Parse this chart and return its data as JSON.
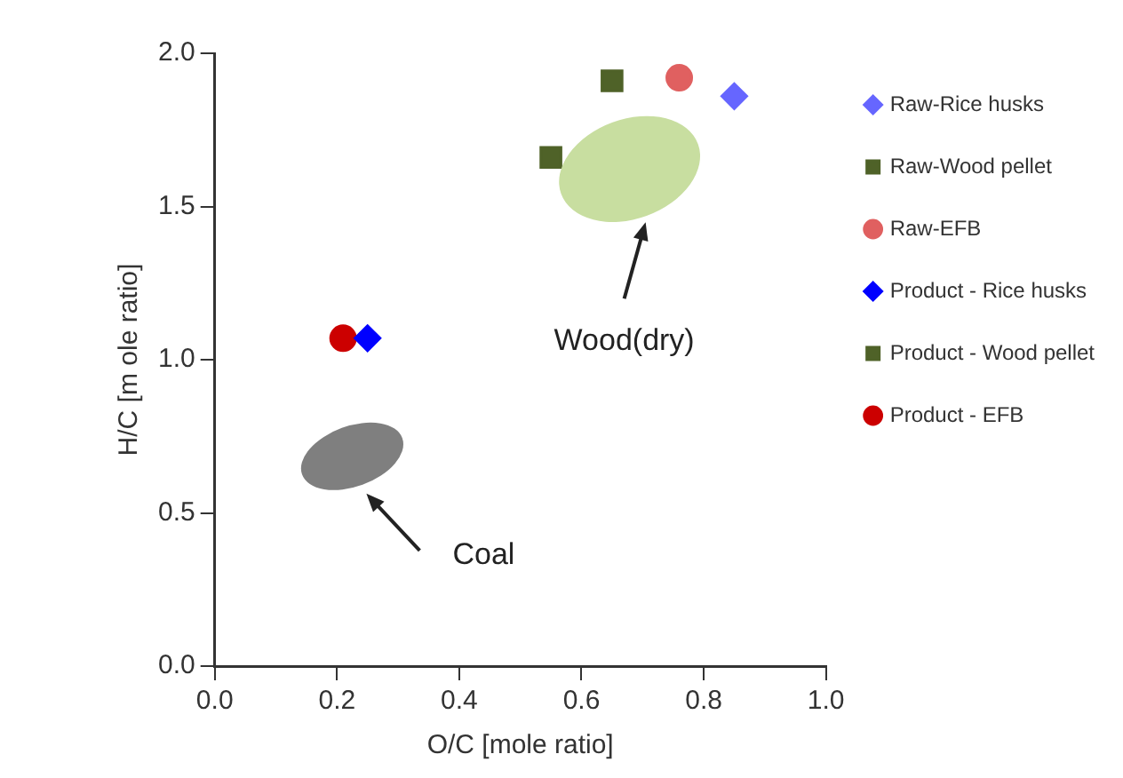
{
  "chart_data": {
    "type": "scatter",
    "xlabel": "O/C [mole ratio]",
    "ylabel": "H/C [m ole ratio]",
    "xlim": [
      0,
      1
    ],
    "ylim": [
      0,
      2
    ],
    "xticks": [
      {
        "value": 0,
        "label": "0.0"
      },
      {
        "value": 0.2,
        "label": "0.2"
      },
      {
        "value": 0.4,
        "label": "0.4"
      },
      {
        "value": 0.6,
        "label": "0.6"
      },
      {
        "value": 0.8,
        "label": "0.8"
      },
      {
        "value": 1,
        "label": "1.0"
      }
    ],
    "yticks": [
      {
        "value": 0,
        "label": "0.0"
      },
      {
        "value": 0.5,
        "label": "0.5"
      },
      {
        "value": 1,
        "label": "1.0"
      },
      {
        "value": 1.5,
        "label": "1.5"
      },
      {
        "value": 2,
        "label": "2.0"
      }
    ],
    "grid": false,
    "legend": "right",
    "series": [
      {
        "name": "Raw-Rice husks",
        "color": "#6666ff",
        "marker": "diamond",
        "x": [
          0.85
        ],
        "values": [
          1.86
        ]
      },
      {
        "name": "Raw-Wood pellet",
        "color": "#4f6228",
        "marker": "square",
        "x": [
          0.65
        ],
        "values": [
          1.91
        ]
      },
      {
        "name": "Raw-EFB",
        "color": "#e06060",
        "marker": "circle",
        "x": [
          0.76
        ],
        "values": [
          1.92
        ]
      },
      {
        "name": "Product - Rice husks",
        "color": "#0000ff",
        "marker": "diamond",
        "x": [
          0.25
        ],
        "values": [
          1.07
        ]
      },
      {
        "name": "Product - Wood pellet",
        "color": "#4f6228",
        "marker": "square",
        "x": [
          0.55
        ],
        "values": [
          1.66
        ]
      },
      {
        "name": "Product - EFB",
        "color": "#cc0000",
        "marker": "circle",
        "x": [
          0.21
        ],
        "values": [
          1.07
        ]
      }
    ],
    "annotations": [
      "Wood(dry)",
      "Coal"
    ]
  }
}
